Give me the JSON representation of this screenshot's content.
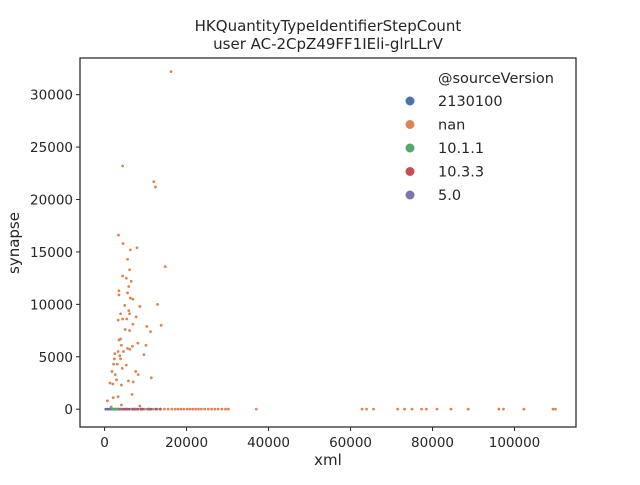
{
  "chart_data": {
    "type": "scatter",
    "title_lines": [
      "HKQuantityTypeIdentifierStepCount",
      "user AC-2CpZ49FF1IEli-glrLLrV"
    ],
    "xlabel": "xml",
    "ylabel": "synapse",
    "xlim": [
      -6000,
      115000
    ],
    "ylim": [
      -1700,
      33500
    ],
    "x_ticks": [
      0,
      20000,
      40000,
      60000,
      80000,
      100000
    ],
    "x_tick_labels": [
      "0",
      "20000",
      "40000",
      "60000",
      "80000",
      "100000"
    ],
    "y_ticks": [
      0,
      5000,
      10000,
      15000,
      20000,
      25000,
      30000
    ],
    "y_tick_labels": [
      "0",
      "5000",
      "10000",
      "15000",
      "20000",
      "25000",
      "30000"
    ],
    "grid": false,
    "legend": {
      "title": "@sourceVersion",
      "placement": "top-right",
      "entries": [
        "2130100",
        "nan",
        "10.1.1",
        "10.3.3",
        "5.0"
      ]
    },
    "series": [
      {
        "name": "2130100",
        "color": "#4c72b0",
        "points": [
          [
            300,
            0
          ],
          [
            700,
            0
          ],
          [
            1200,
            0
          ],
          [
            1800,
            0
          ],
          [
            2300,
            0
          ],
          [
            2900,
            0
          ],
          [
            3500,
            0
          ],
          [
            4200,
            0
          ],
          [
            5000,
            0
          ],
          [
            6000,
            0
          ],
          [
            7300,
            0
          ],
          [
            8800,
            0
          ],
          [
            10500,
            0
          ],
          [
            12500,
            0
          ]
        ]
      },
      {
        "name": "nan",
        "color": "#dd8452",
        "points": [
          [
            16200,
            32200
          ],
          [
            4400,
            23200
          ],
          [
            12000,
            21700
          ],
          [
            12400,
            21200
          ],
          [
            3400,
            16600
          ],
          [
            4500,
            15800
          ],
          [
            7900,
            15400
          ],
          [
            6300,
            15200
          ],
          [
            5600,
            14300
          ],
          [
            14800,
            13600
          ],
          [
            6100,
            13300
          ],
          [
            4400,
            12700
          ],
          [
            5300,
            12500
          ],
          [
            6500,
            12200
          ],
          [
            5900,
            11700
          ],
          [
            3500,
            11300
          ],
          [
            5600,
            11100
          ],
          [
            3500,
            10900
          ],
          [
            6300,
            10600
          ],
          [
            6900,
            10500
          ],
          [
            12900,
            10000
          ],
          [
            4900,
            9900
          ],
          [
            8600,
            9800
          ],
          [
            5900,
            9400
          ],
          [
            3900,
            9100
          ],
          [
            6100,
            9100
          ],
          [
            7700,
            8800
          ],
          [
            5400,
            8600
          ],
          [
            3300,
            8500
          ],
          [
            4400,
            8600
          ],
          [
            6900,
            8100
          ],
          [
            10300,
            7900
          ],
          [
            13800,
            8000
          ],
          [
            5000,
            7600
          ],
          [
            6100,
            7500
          ],
          [
            11200,
            7400
          ],
          [
            3900,
            6700
          ],
          [
            3500,
            6600
          ],
          [
            8100,
            6300
          ],
          [
            4100,
            6100
          ],
          [
            6800,
            6000
          ],
          [
            10100,
            6100
          ],
          [
            5600,
            5800
          ],
          [
            6200,
            5700
          ],
          [
            3300,
            5500
          ],
          [
            4600,
            5500
          ],
          [
            2500,
            5300
          ],
          [
            3700,
            5100
          ],
          [
            9600,
            5200
          ],
          [
            2400,
            4800
          ],
          [
            3900,
            4800
          ],
          [
            2200,
            4300
          ],
          [
            3100,
            4300
          ],
          [
            5300,
            4200
          ],
          [
            4300,
            3900
          ],
          [
            1800,
            3600
          ],
          [
            7600,
            3600
          ],
          [
            2600,
            3300
          ],
          [
            8200,
            3300
          ],
          [
            11400,
            3000
          ],
          [
            2900,
            2800
          ],
          [
            5800,
            2700
          ],
          [
            1300,
            2500
          ],
          [
            7000,
            2600
          ],
          [
            4100,
            2300
          ],
          [
            2000,
            2400
          ],
          [
            6700,
            1400
          ],
          [
            3300,
            1200
          ],
          [
            2100,
            1100
          ],
          [
            700,
            800
          ],
          [
            4100,
            400
          ],
          [
            8600,
            300
          ],
          [
            1600,
            200
          ],
          [
            5200,
            0
          ],
          [
            6600,
            0
          ],
          [
            7700,
            0
          ],
          [
            8900,
            0
          ],
          [
            9800,
            0
          ],
          [
            10900,
            0
          ],
          [
            11800,
            0
          ],
          [
            12900,
            0
          ],
          [
            13600,
            0
          ],
          [
            14600,
            0
          ],
          [
            15500,
            0
          ],
          [
            16400,
            0
          ],
          [
            17200,
            0
          ],
          [
            17900,
            0
          ],
          [
            18600,
            0
          ],
          [
            19300,
            0
          ],
          [
            20100,
            0
          ],
          [
            20800,
            0
          ],
          [
            21500,
            0
          ],
          [
            22200,
            0
          ],
          [
            22900,
            0
          ],
          [
            23600,
            0
          ],
          [
            24400,
            0
          ],
          [
            25300,
            0
          ],
          [
            26100,
            0
          ],
          [
            26900,
            0
          ],
          [
            27700,
            0
          ],
          [
            28600,
            0
          ],
          [
            29500,
            0
          ],
          [
            30200,
            0
          ],
          [
            37000,
            0
          ],
          [
            62800,
            0
          ],
          [
            63900,
            0
          ],
          [
            65600,
            0
          ],
          [
            71500,
            0
          ],
          [
            73200,
            0
          ],
          [
            75000,
            0
          ],
          [
            77300,
            0
          ],
          [
            78500,
            0
          ],
          [
            81100,
            0
          ],
          [
            84500,
            0
          ],
          [
            88700,
            0
          ],
          [
            96200,
            0
          ],
          [
            97300,
            0
          ],
          [
            102300,
            0
          ],
          [
            109400,
            0
          ],
          [
            110000,
            0
          ]
        ]
      },
      {
        "name": "10.1.1",
        "color": "#55a868",
        "points": [
          [
            2000,
            0
          ],
          [
            2600,
            0
          ],
          [
            3200,
            0
          ]
        ]
      },
      {
        "name": "10.3.3",
        "color": "#c44e52",
        "points": [
          [
            2500,
            0
          ],
          [
            3400,
            0
          ],
          [
            4600,
            0
          ],
          [
            5500,
            0
          ],
          [
            6900,
            0
          ],
          [
            8100,
            0
          ],
          [
            9300,
            0
          ],
          [
            11300,
            0
          ],
          [
            13600,
            0
          ]
        ]
      },
      {
        "name": "5.0",
        "color": "#8172b3",
        "points": [
          [
            1500,
            0
          ],
          [
            3900,
            0
          ],
          [
            7500,
            0
          ],
          [
            10700,
            0
          ]
        ]
      }
    ]
  }
}
